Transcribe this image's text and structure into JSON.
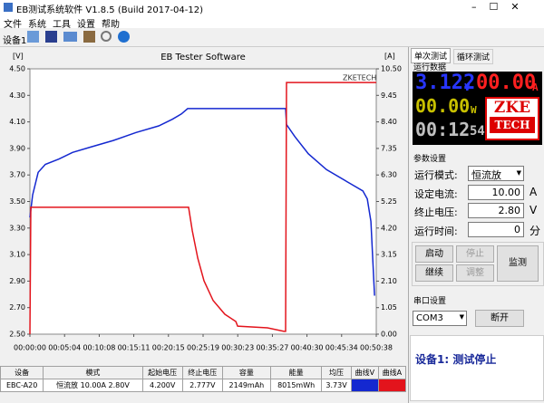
{
  "window": {
    "title": "EB测试系统软件 V1.8.5 (Build 2017-04-12)"
  },
  "menu": [
    "文件",
    "系统",
    "工具",
    "设置",
    "帮助"
  ],
  "toolbar": {
    "device": "设备1"
  },
  "chart_data": {
    "type": "line",
    "title": "EB Tester Software",
    "y_label": "[V]",
    "y2_label": "[A]",
    "watermark": "ZKETECH",
    "xlim": [
      0,
      3038
    ],
    "xticks": [
      {
        "value": 0,
        "label": "00:00:00"
      },
      {
        "value": 304,
        "label": "00:05:04"
      },
      {
        "value": 608,
        "label": "00:10:08"
      },
      {
        "value": 911,
        "label": "00:15:11"
      },
      {
        "value": 1215,
        "label": "00:20:15"
      },
      {
        "value": 1519,
        "label": "00:25:19"
      },
      {
        "value": 1823,
        "label": "00:30:23"
      },
      {
        "value": 2127,
        "label": "00:35:27"
      },
      {
        "value": 2430,
        "label": "00:40:30"
      },
      {
        "value": 2734,
        "label": "00:45:34"
      },
      {
        "value": 3038,
        "label": "00:50:38"
      }
    ],
    "ylim": [
      2.5,
      4.5
    ],
    "yticks": [
      {
        "value": 4.5,
        "label": "4.50"
      },
      {
        "value": 4.3,
        "label": "4.30"
      },
      {
        "value": 4.1,
        "label": "4.10"
      },
      {
        "value": 3.9,
        "label": "3.90"
      },
      {
        "value": 3.7,
        "label": "3.70"
      },
      {
        "value": 3.5,
        "label": "3.50"
      },
      {
        "value": 3.3,
        "label": "3.30"
      },
      {
        "value": 3.1,
        "label": "3.10"
      },
      {
        "value": 2.9,
        "label": "2.90"
      },
      {
        "value": 2.7,
        "label": "2.70"
      },
      {
        "value": 2.5,
        "label": "2.50"
      }
    ],
    "y2lim": [
      0,
      10.5
    ],
    "y2ticks": [
      {
        "value": 10.5,
        "label": "10.50"
      },
      {
        "value": 9.45,
        "label": "9.45"
      },
      {
        "value": 8.4,
        "label": "8.40"
      },
      {
        "value": 7.35,
        "label": "7.35"
      },
      {
        "value": 6.3,
        "label": "6.30"
      },
      {
        "value": 5.25,
        "label": "5.25"
      },
      {
        "value": 4.2,
        "label": "4.20"
      },
      {
        "value": 3.15,
        "label": "3.15"
      },
      {
        "value": 2.1,
        "label": "2.10"
      },
      {
        "value": 1.05,
        "label": "1.05"
      },
      {
        "value": 0,
        "label": "0.00"
      }
    ],
    "series": [
      {
        "color": "#1428d0",
        "x": [
          0,
          24,
          72,
          135,
          255,
          374,
          533,
          732,
          931,
          1130,
          1249,
          1329,
          1384,
          2243,
          2251,
          2323,
          2442,
          2601,
          2800,
          2920,
          2959,
          2991,
          3023
        ],
        "values": [
          3.38,
          3.55,
          3.72,
          3.78,
          3.82,
          3.87,
          3.91,
          3.96,
          4.02,
          4.07,
          4.12,
          4.16,
          4.2,
          4.2,
          4.08,
          3.99,
          3.86,
          3.74,
          3.64,
          3.58,
          3.52,
          3.35,
          2.79
        ]
      },
      {
        "color": "#e3141c",
        "axis": "y2",
        "x": [
          0,
          8,
          1392,
          1424,
          1472,
          1527,
          1607,
          1710,
          1806,
          1822,
          2084,
          2228,
          2243,
          2251,
          3038
        ],
        "values": [
          0,
          5.02,
          5.02,
          4.09,
          3.01,
          2.11,
          1.33,
          0.79,
          0.5,
          0.32,
          0.25,
          0.11,
          0.11,
          9.96,
          9.96
        ]
      }
    ]
  },
  "table": {
    "headers": [
      "设备",
      "模式",
      "起始电压",
      "终止电压",
      "容量",
      "能量",
      "均压",
      "曲线V",
      "曲线A"
    ],
    "rows": [
      [
        "EBC-A20",
        "恒流放 10.00A 2.80V",
        "4.200V",
        "2.777V",
        "2149mAh",
        "8015mWh",
        "3.73V"
      ]
    ]
  },
  "panel": {
    "tabs": [
      "单次测试",
      "循环测试"
    ],
    "run_data": "运行数据",
    "display": {
      "voltage": "3.122",
      "voltage_unit": "V",
      "current": "00.00",
      "current_unit": "A",
      "power": "00.00",
      "power_unit": "W",
      "time": "00:12",
      "time_seconds": "54",
      "logo_top": "ZKE",
      "logo_bottom": "TECH"
    },
    "params_title": "参数设置",
    "params": [
      {
        "label": "运行模式:",
        "value": "恒流放"
      },
      {
        "label": "设定电流:",
        "value": "10.00",
        "unit": "A"
      },
      {
        "label": "终止电压:",
        "value": "2.80",
        "unit": "V"
      },
      {
        "label": "运行时间:",
        "value": "0",
        "unit": "分"
      }
    ],
    "buttons": [
      "启动",
      "停止",
      "继续",
      "调整",
      "监测"
    ],
    "serial_title": "串口设置",
    "port": "COM3",
    "disconnect": "断开",
    "status": "设备1: 测试停止"
  }
}
